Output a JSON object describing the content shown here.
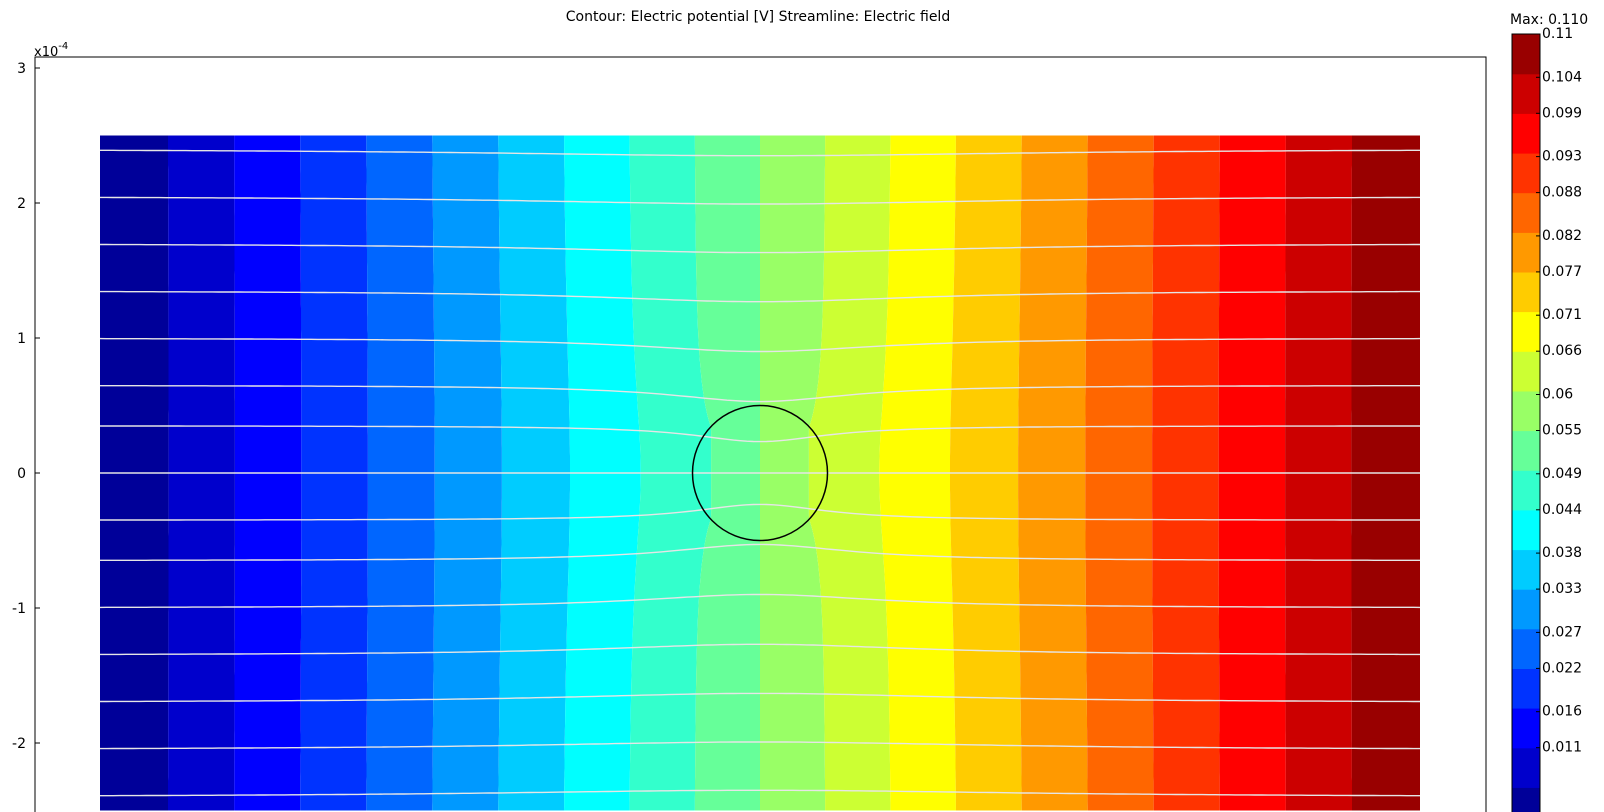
{
  "chart_data": {
    "type": "heatmap",
    "title": "Contour: Electric potential [V]   Streamline: Electric field",
    "xlabel": "",
    "ylabel": "",
    "y_exponent_base": "x10",
    "y_exponent_power": "-4",
    "y_ticks": [
      "3",
      "2",
      "1",
      "0",
      "-1",
      "-2"
    ],
    "y_tick_values": [
      3,
      2,
      1,
      0,
      -1,
      -2
    ],
    "ylim": [
      -2.5,
      3.0
    ],
    "field": {
      "x_range": [
        -5,
        5
      ],
      "y_range": [
        -2.5,
        2.5
      ],
      "levels": 20,
      "potential_min": 0.0,
      "potential_max": 0.11,
      "inclusion_radius": 0.5,
      "inclusion_center": [
        0,
        0
      ]
    },
    "streamlines": {
      "count": 15,
      "y_start": [
        2.4,
        2.05,
        1.7,
        1.35,
        1.0,
        0.65,
        0.35,
        0.0,
        -0.35,
        -0.65,
        -1.0,
        -1.35,
        -1.7,
        -2.05,
        -2.4
      ]
    },
    "colorbar": {
      "max_label": "Max: 0.110",
      "tick_labels": [
        "0.11",
        "0.104",
        "0.099",
        "0.093",
        "0.088",
        "0.082",
        "0.077",
        "0.071",
        "0.066",
        "0.06",
        "0.055",
        "0.049",
        "0.044",
        "0.038",
        "0.033",
        "0.027",
        "0.022",
        "0.016",
        "0.011"
      ],
      "tick_values": [
        0.11,
        0.104,
        0.099,
        0.093,
        0.088,
        0.082,
        0.077,
        0.071,
        0.066,
        0.06,
        0.055,
        0.049,
        0.044,
        0.038,
        0.033,
        0.027,
        0.022,
        0.016,
        0.011
      ],
      "range": [
        0.0,
        0.11
      ]
    },
    "colors": {
      "inclusion_outline": "#000000",
      "streamline": "#e6e6e6",
      "frame": "#000000"
    }
  }
}
